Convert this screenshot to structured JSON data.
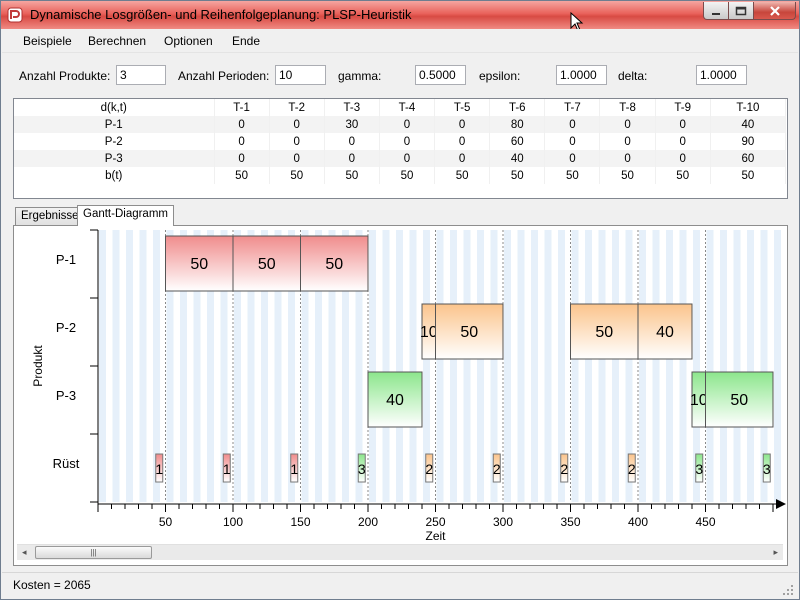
{
  "window": {
    "title": "Dynamische Losgrößen- und Reihenfolgeplanung: PLSP-Heuristik"
  },
  "menu": [
    "Beispiele",
    "Berechnen",
    "Optionen",
    "Ende"
  ],
  "params": {
    "products_label": "Anzahl Produkte:",
    "products_value": "3",
    "periods_label": "Anzahl Perioden:",
    "periods_value": "10",
    "gamma_label": "gamma:",
    "gamma_value": "0.5000",
    "epsilon_label": "epsilon:",
    "epsilon_value": "1.0000",
    "delta_label": "delta:",
    "delta_value": "1.0000"
  },
  "demand_table": {
    "header": [
      "d(k,t)",
      "T-1",
      "T-2",
      "T-3",
      "T-4",
      "T-5",
      "T-6",
      "T-7",
      "T-8",
      "T-9",
      "T-10"
    ],
    "rows": [
      [
        "P-1",
        "0",
        "0",
        "30",
        "0",
        "0",
        "80",
        "0",
        "0",
        "0",
        "40"
      ],
      [
        "P-2",
        "0",
        "0",
        "0",
        "0",
        "0",
        "60",
        "0",
        "0",
        "0",
        "90"
      ],
      [
        "P-3",
        "0",
        "0",
        "0",
        "0",
        "0",
        "40",
        "0",
        "0",
        "0",
        "60"
      ],
      [
        "b(t)",
        "50",
        "50",
        "50",
        "50",
        "50",
        "50",
        "50",
        "50",
        "50",
        "50"
      ]
    ]
  },
  "tabs": [
    "Ergebnisse",
    "Gantt-Diagramm"
  ],
  "active_tab": 1,
  "gantt": {
    "y_axis_label": "Produkt",
    "x_axis_label": "Zeit",
    "row_labels": [
      "P-1",
      "P-2",
      "P-3",
      "Rüst"
    ],
    "x_ticks": [
      "50",
      "100",
      "150",
      "200",
      "250",
      "300",
      "350",
      "400",
      "450"
    ],
    "colors": {
      "P-1": "#f08c8c",
      "P-2": "#fbc48c",
      "P-3": "#8ce68c"
    },
    "bars": [
      {
        "product": "P-1",
        "start": 50,
        "end": 100,
        "label": "50"
      },
      {
        "product": "P-1",
        "start": 100,
        "end": 150,
        "label": "50"
      },
      {
        "product": "P-1",
        "start": 150,
        "end": 200,
        "label": "50"
      },
      {
        "product": "P-2",
        "start": 240,
        "end": 250,
        "label": "10"
      },
      {
        "product": "P-2",
        "start": 250,
        "end": 300,
        "label": "50"
      },
      {
        "product": "P-2",
        "start": 350,
        "end": 400,
        "label": "50"
      },
      {
        "product": "P-2",
        "start": 400,
        "end": 440,
        "label": "40"
      },
      {
        "product": "P-3",
        "start": 200,
        "end": 240,
        "label": "40"
      },
      {
        "product": "P-3",
        "start": 440,
        "end": 450,
        "label": "10"
      },
      {
        "product": "P-3",
        "start": 450,
        "end": 500,
        "label": "50"
      }
    ],
    "setups": [
      {
        "t": 45,
        "label": "1",
        "product": "P-1"
      },
      {
        "t": 95,
        "label": "1",
        "product": "P-1"
      },
      {
        "t": 145,
        "label": "1",
        "product": "P-1"
      },
      {
        "t": 195,
        "label": "3",
        "product": "P-3"
      },
      {
        "t": 245,
        "label": "2",
        "product": "P-2"
      },
      {
        "t": 295,
        "label": "2",
        "product": "P-2"
      },
      {
        "t": 345,
        "label": "2",
        "product": "P-2"
      },
      {
        "t": 395,
        "label": "2",
        "product": "P-2"
      },
      {
        "t": 445,
        "label": "3",
        "product": "P-3"
      },
      {
        "t": 495,
        "label": "3",
        "product": "P-3"
      }
    ]
  },
  "status": {
    "text": "Kosten = 2065"
  }
}
